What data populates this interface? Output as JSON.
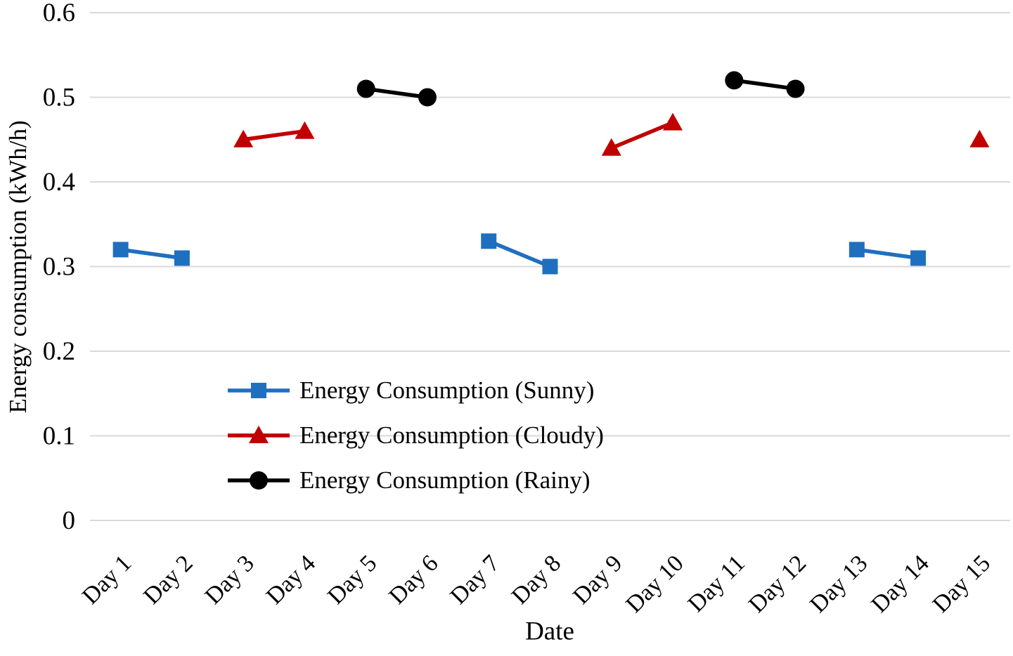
{
  "chart_data": {
    "type": "line",
    "title": "",
    "xlabel": "Date",
    "ylabel": "Energy consumption (kWh/h)",
    "categories": [
      "Day 1",
      "Day 2",
      "Day 3",
      "Day 4",
      "Day 5",
      "Day 6",
      "Day 7",
      "Day 8",
      "Day 9",
      "Day 10",
      "Day 11",
      "Day 12",
      "Day 13",
      "Day 14",
      "Day 15"
    ],
    "ylim": [
      0,
      0.6
    ],
    "yticks": [
      {
        "value": 0.0,
        "label": "0"
      },
      {
        "value": 0.1,
        "label": "0.1"
      },
      {
        "value": 0.2,
        "label": "0.2"
      },
      {
        "value": 0.3,
        "label": "0.3"
      },
      {
        "value": 0.4,
        "label": "0.4"
      },
      {
        "value": 0.5,
        "label": "0.5"
      },
      {
        "value": 0.6,
        "label": "0.6"
      }
    ],
    "grid": true,
    "legend_position": "inside-lower-left",
    "series": [
      {
        "key": "sunny",
        "name": "Energy Consumption (Sunny)",
        "marker": "square",
        "color": "#1F6FBF",
        "values": [
          0.32,
          0.31,
          null,
          null,
          null,
          null,
          0.33,
          0.3,
          null,
          null,
          null,
          null,
          0.32,
          0.31,
          null
        ]
      },
      {
        "key": "cloudy",
        "name": "Energy Consumption (Cloudy)",
        "marker": "triangle",
        "color": "#C00000",
        "values": [
          null,
          null,
          0.45,
          0.46,
          null,
          null,
          null,
          null,
          0.44,
          0.47,
          null,
          null,
          null,
          null,
          0.45
        ]
      },
      {
        "key": "rainy",
        "name": "Energy Consumption (Rainy)",
        "marker": "circle",
        "color": "#000000",
        "values": [
          null,
          null,
          null,
          null,
          0.51,
          0.5,
          null,
          null,
          null,
          null,
          0.52,
          0.51,
          null,
          null,
          null
        ]
      }
    ]
  },
  "colors": {
    "gridline": "#D9D9D9",
    "text": "#000000",
    "background": "#FFFFFF"
  }
}
